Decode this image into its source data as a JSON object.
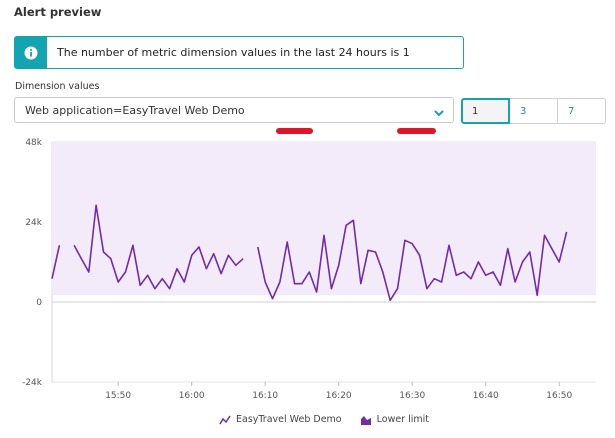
{
  "heading": "Alert preview",
  "info": {
    "text": "The number of metric dimension values in the last 24 hours is 1",
    "icon": "info-icon"
  },
  "dimension": {
    "label": "Dimension values",
    "selected": "Web application=EasyTravel Web Demo"
  },
  "segments": [
    {
      "label": "1",
      "active": true
    },
    {
      "label": "3",
      "active": false
    },
    {
      "label": "7",
      "active": false
    }
  ],
  "colors": {
    "accent": "#14a3b0",
    "series": "#6f2da8",
    "band": "#f3eafa",
    "marker": "#dc172a"
  },
  "chart_data": {
    "type": "line",
    "y_ticks": [
      "48k",
      "24k",
      "0",
      "-24k"
    ],
    "x_ticks": [
      "15:50",
      "16:00",
      "16:10",
      "16:20",
      "16:30",
      "16:40",
      "16:50"
    ],
    "ylim": [
      -24000,
      48000
    ],
    "xlim_minutes": [
      941,
      1015
    ],
    "lower_limit_band": {
      "from": 2000,
      "to": 48000
    },
    "legend": [
      {
        "name": "EasyTravel Web Demo",
        "icon": "line-series-icon"
      },
      {
        "name": "Lower limit",
        "icon": "area-series-icon"
      }
    ],
    "series": [
      {
        "name": "EasyTravel Web Demo",
        "segments": [
          [
            [
              941,
              7000
            ],
            [
              942,
              17000
            ]
          ],
          [
            [
              944,
              17000
            ],
            [
              945,
              13000
            ],
            [
              946,
              9000
            ],
            [
              947,
              29000
            ],
            [
              948,
              15000
            ],
            [
              949,
              13000
            ],
            [
              950,
              6000
            ],
            [
              951,
              9000
            ],
            [
              952,
              17000
            ],
            [
              953,
              5000
            ],
            [
              954,
              8000
            ],
            [
              955,
              4000
            ],
            [
              956,
              7000
            ],
            [
              957,
              4000
            ],
            [
              958,
              10000
            ],
            [
              959,
              6000
            ],
            [
              960,
              14000
            ],
            [
              961,
              16500
            ],
            [
              962,
              10000
            ],
            [
              963,
              14500
            ],
            [
              964,
              8500
            ],
            [
              965,
              14000
            ],
            [
              966,
              11000
            ],
            [
              967,
              13000
            ]
          ],
          [
            [
              969,
              16500
            ],
            [
              970,
              6000
            ],
            [
              971,
              1000
            ],
            [
              972,
              6000
            ],
            [
              973,
              18000
            ],
            [
              974,
              5500
            ],
            [
              975,
              5500
            ],
            [
              976,
              9000
            ],
            [
              977,
              3000
            ],
            [
              978,
              20000
            ],
            [
              979,
              4000
            ],
            [
              980,
              11000
            ],
            [
              981,
              23000
            ],
            [
              982,
              24500
            ],
            [
              983,
              5500
            ],
            [
              984,
              15500
            ],
            [
              985,
              15000
            ],
            [
              986,
              9000
            ],
            [
              987,
              500
            ],
            [
              988,
              4000
            ],
            [
              989,
              18500
            ],
            [
              990,
              17500
            ],
            [
              991,
              14000
            ],
            [
              992,
              4000
            ],
            [
              993,
              7000
            ],
            [
              994,
              6000
            ],
            [
              995,
              17000
            ],
            [
              996,
              8000
            ],
            [
              997,
              9000
            ],
            [
              998,
              7000
            ],
            [
              999,
              12000
            ],
            [
              1000,
              8000
            ],
            [
              1001,
              9000
            ],
            [
              1002,
              5000
            ],
            [
              1003,
              16000
            ],
            [
              1004,
              6000
            ],
            [
              1005,
              12000
            ],
            [
              1006,
              15000
            ],
            [
              1007,
              2000
            ],
            [
              1008,
              20000
            ],
            [
              1009,
              16000
            ],
            [
              1010,
              12000
            ],
            [
              1011,
              21000
            ]
          ]
        ]
      }
    ]
  }
}
